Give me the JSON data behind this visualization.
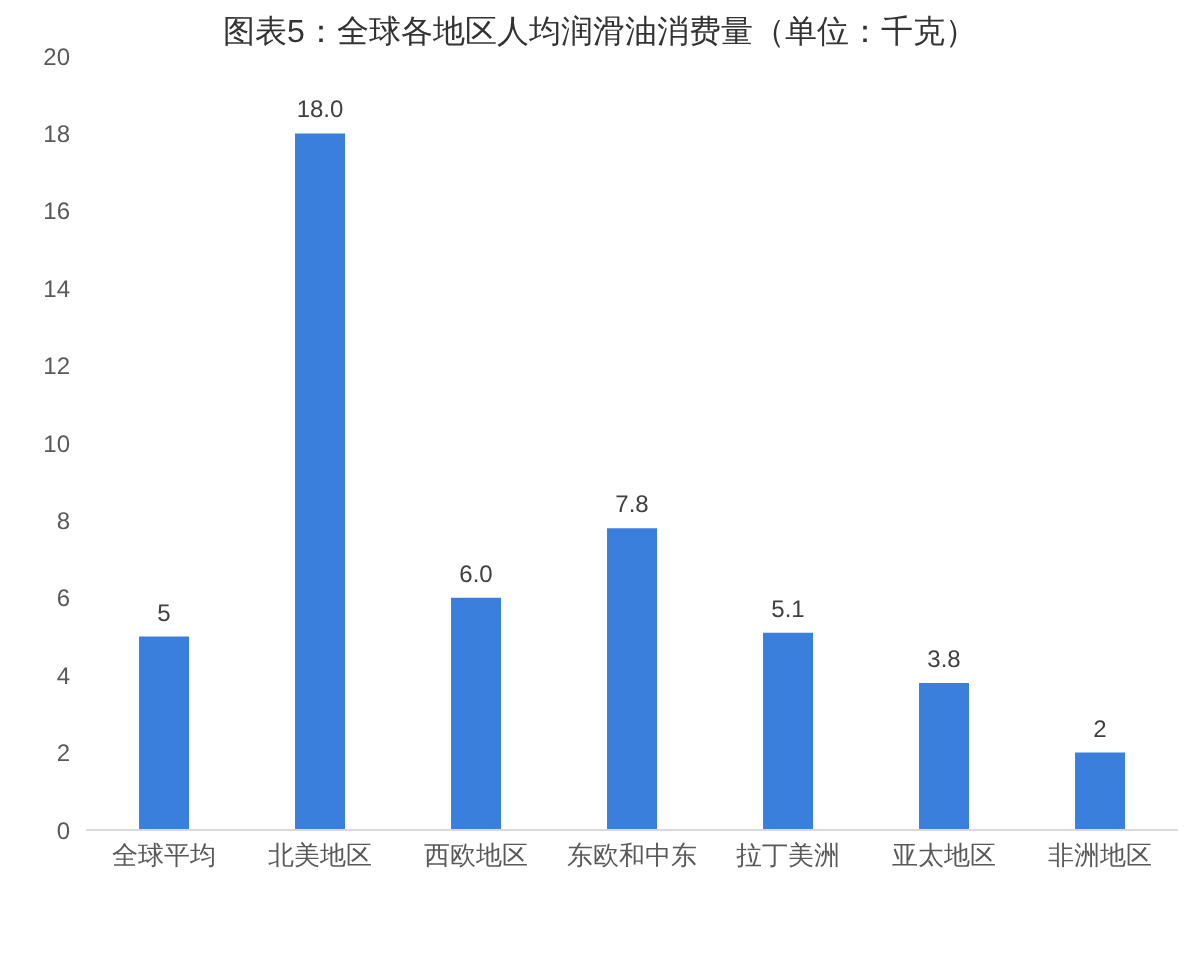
{
  "chart_data": {
    "type": "bar",
    "title": "图表5：全球各地区人均润滑油消费量（单位：千克）",
    "categories": [
      "全球平均",
      "北美地区",
      "西欧地区",
      "东欧和中东",
      "拉丁美洲",
      "亚太地区",
      "非洲地区"
    ],
    "values": [
      5,
      18.0,
      6.0,
      7.8,
      5.1,
      3.8,
      2
    ],
    "color": "#3b7fdc",
    "value_labels": [
      "5",
      "18.0",
      "6.0",
      "7.8",
      "5.1",
      "3.8",
      "2"
    ],
    "ylim": [
      0,
      20
    ],
    "yticks": [
      0,
      2,
      4,
      6,
      8,
      10,
      12,
      14,
      16,
      18,
      20
    ]
  }
}
